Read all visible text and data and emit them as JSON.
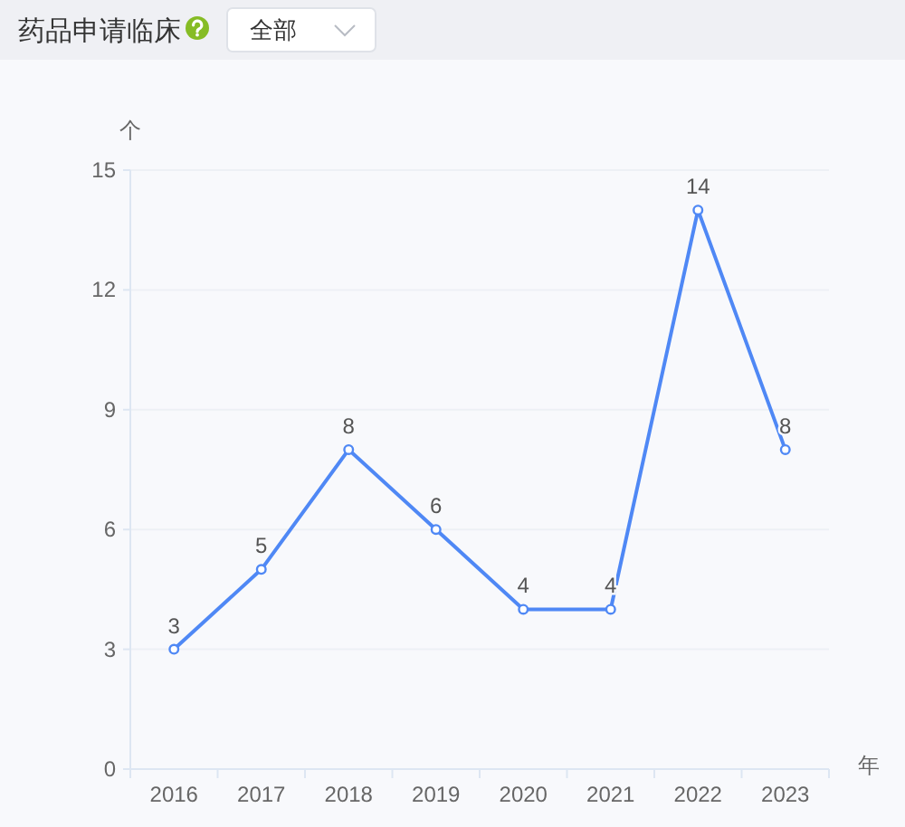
{
  "chart_data": {
    "type": "line",
    "title": "药品申请临床",
    "annotations": [
      "全部"
    ],
    "xlabel": "年",
    "ylabel": "个",
    "categories": [
      "2016",
      "2017",
      "2018",
      "2019",
      "2020",
      "2021",
      "2022",
      "2023"
    ],
    "series": [
      {
        "color": "#4f88f5",
        "values": [
          3,
          5,
          8,
          6,
          4,
          4,
          14,
          8
        ]
      }
    ],
    "ylim": [
      0,
      15
    ],
    "yticks": [
      0,
      3,
      6,
      9,
      12,
      15
    ],
    "grid": "y",
    "marker": "circle",
    "data_labels": true
  }
}
